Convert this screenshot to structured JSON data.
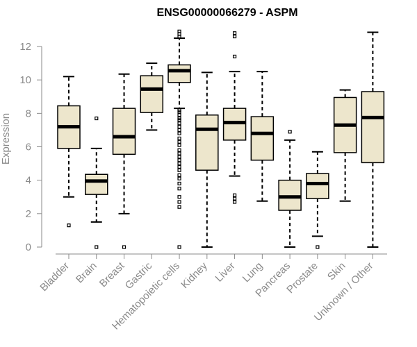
{
  "chart_data": {
    "type": "boxplot",
    "title": "ENSG00000066279 - ASPM",
    "xlabel": "",
    "ylabel": "Expression",
    "ylim": [
      0,
      12.5
    ],
    "yticks": [
      0,
      2,
      4,
      6,
      8,
      10,
      12
    ],
    "categories": [
      "Bladder",
      "Brain",
      "Breast",
      "Gastric",
      "Hematopoietic cells",
      "Kidney",
      "Liver",
      "Lung",
      "Pancreas",
      "Prostate",
      "Skin",
      "Unknown / Other"
    ],
    "boxes": [
      {
        "category": "Bladder",
        "min": 3.0,
        "q1": 5.9,
        "median": 7.2,
        "q3": 8.45,
        "max": 10.2,
        "outliers": [
          1.3
        ]
      },
      {
        "category": "Brain",
        "min": 1.5,
        "q1": 3.15,
        "median": 3.95,
        "q3": 4.35,
        "max": 5.9,
        "outliers": [
          0.0,
          7.7
        ]
      },
      {
        "category": "Breast",
        "min": 2.0,
        "q1": 5.55,
        "median": 6.6,
        "q3": 8.3,
        "max": 10.35,
        "outliers": [
          0.0
        ]
      },
      {
        "category": "Gastric",
        "min": 7.0,
        "q1": 8.05,
        "median": 9.45,
        "q3": 10.25,
        "max": 11.0,
        "outliers": []
      },
      {
        "category": "Hematopoietic cells",
        "min": 8.3,
        "q1": 9.85,
        "median": 10.55,
        "q3": 10.9,
        "max": 12.5,
        "outliers": [
          12.9,
          12.75,
          12.6,
          8.2,
          8.1,
          7.9,
          7.7,
          7.6,
          7.4,
          7.2,
          7.0,
          6.8,
          6.5,
          6.3,
          6.1,
          5.8,
          5.6,
          5.4,
          5.2,
          5.0,
          4.8,
          4.6,
          4.3,
          4.1,
          3.8,
          3.5,
          3.0,
          2.7,
          2.4,
          0.0
        ]
      },
      {
        "category": "Kidney",
        "min": 0.0,
        "q1": 4.6,
        "median": 7.05,
        "q3": 7.9,
        "max": 10.45,
        "outliers": []
      },
      {
        "category": "Liver",
        "min": 4.25,
        "q1": 6.4,
        "median": 7.45,
        "q3": 8.3,
        "max": 10.5,
        "outliers": [
          12.8,
          12.6,
          11.4,
          3.1,
          2.9,
          2.7
        ]
      },
      {
        "category": "Lung",
        "min": 2.75,
        "q1": 5.2,
        "median": 6.8,
        "q3": 7.8,
        "max": 10.5,
        "outliers": []
      },
      {
        "category": "Pancreas",
        "min": 0.0,
        "q1": 2.2,
        "median": 3.0,
        "q3": 4.0,
        "max": 6.4,
        "outliers": [
          6.9
        ]
      },
      {
        "category": "Prostate",
        "min": 0.65,
        "q1": 2.9,
        "median": 3.8,
        "q3": 4.4,
        "max": 5.7,
        "outliers": [
          0.0
        ]
      },
      {
        "category": "Skin",
        "min": 2.75,
        "q1": 5.65,
        "median": 7.3,
        "q3": 8.95,
        "max": 9.4,
        "outliers": []
      },
      {
        "category": "Unknown / Other",
        "min": 0.0,
        "q1": 5.05,
        "median": 7.75,
        "q3": 9.3,
        "max": 12.85,
        "outliers": []
      }
    ],
    "colors": {
      "box_fill": "#ede6cc",
      "stroke": "#000000",
      "axis": "#8a8a8a"
    },
    "grid": false,
    "legend": "none"
  }
}
